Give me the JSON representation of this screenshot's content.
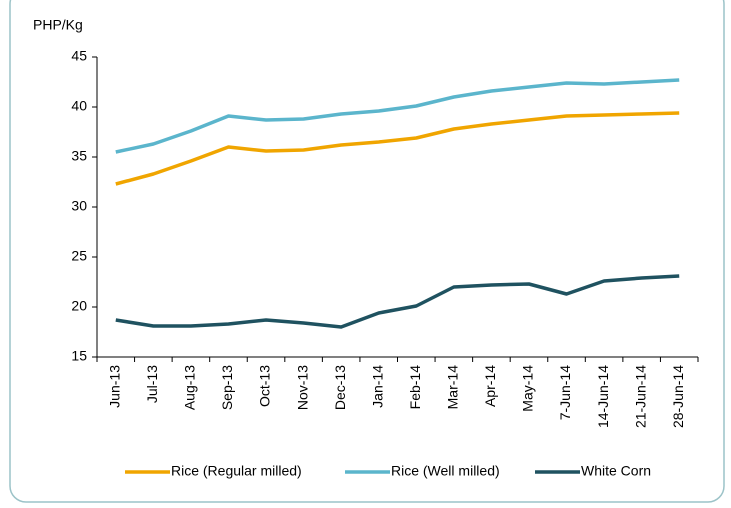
{
  "chart_data": {
    "type": "line",
    "y_label": "PHP/Kg",
    "categories": [
      "Jun-13",
      "Jul-13",
      "Aug-13",
      "Sep-13",
      "Oct-13",
      "Nov-13",
      "Dec-13",
      "Jan-14",
      "Feb-14",
      "Mar-14",
      "Apr-14",
      "May-14",
      "7-Jun-14",
      "14-Jun-14",
      "21-Jun-14",
      "28-Jun-14"
    ],
    "series": [
      {
        "name": "Rice (Regular milled)",
        "color": "#f0a500",
        "values": [
          32.3,
          33.3,
          34.6,
          36.0,
          35.6,
          35.7,
          36.2,
          36.5,
          36.9,
          37.8,
          38.3,
          38.7,
          39.1,
          39.2,
          39.3,
          39.4
        ]
      },
      {
        "name": "Rice (Well milled)",
        "color": "#5bb5cc",
        "values": [
          35.5,
          36.3,
          37.6,
          39.1,
          38.7,
          38.8,
          39.3,
          39.6,
          40.1,
          41.0,
          41.6,
          42.0,
          42.4,
          42.3,
          42.5,
          42.7
        ]
      },
      {
        "name": "White Corn",
        "color": "#1f5260",
        "values": [
          18.7,
          18.1,
          18.1,
          18.3,
          18.7,
          18.4,
          18.0,
          19.4,
          20.1,
          22.0,
          22.2,
          22.3,
          21.3,
          22.6,
          22.9,
          23.1
        ]
      }
    ],
    "ylim": [
      15,
      45
    ],
    "yticks": [
      15,
      20,
      25,
      30,
      35,
      40,
      45
    ],
    "legend": "bottom"
  }
}
